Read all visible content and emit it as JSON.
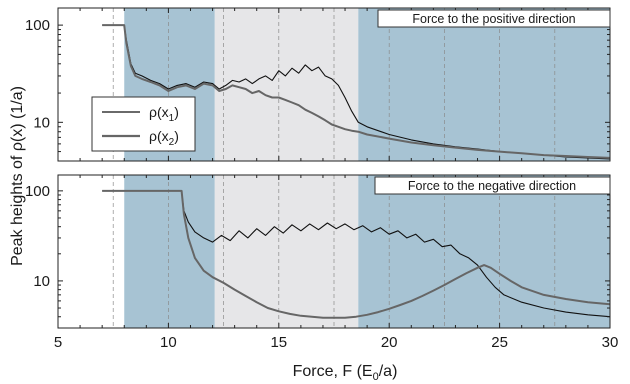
{
  "chart_data": [
    {
      "type": "line",
      "panel": "top",
      "annotation": "Force to the positive direction",
      "xlim": [
        5,
        30
      ],
      "ylim": [
        4,
        150
      ],
      "yscale": "log",
      "colors": {
        "rho_x1": "#111111",
        "rho_x2": "#666666",
        "band_blue": "#a7c3d3",
        "band_gray": "#e6e6e8"
      },
      "bands": [
        {
          "x0": 8.0,
          "x1": 12.1,
          "color": "band_blue"
        },
        {
          "x0": 12.1,
          "x1": 18.6,
          "color": "band_gray"
        },
        {
          "x0": 18.6,
          "x1": 30.0,
          "color": "band_blue"
        }
      ],
      "vlines": [
        7.5,
        10,
        12.5,
        15,
        17.5,
        20,
        22.5,
        25,
        27.5
      ],
      "legend": {
        "position": "left",
        "entries": [
          "ρ(x1)",
          "ρ(x2)"
        ]
      },
      "series": [
        {
          "key": "rho_x1",
          "name": "ρ(x1)",
          "x": [
            7.0,
            8.0,
            8.1,
            8.3,
            8.5,
            8.8,
            9.2,
            9.6,
            10.0,
            10.4,
            10.8,
            11.2,
            11.6,
            12.0,
            12.1,
            12.3,
            12.6,
            12.9,
            13.2,
            13.5,
            13.8,
            14.1,
            14.4,
            14.7,
            15.0,
            15.3,
            15.6,
            15.9,
            16.2,
            16.5,
            16.8,
            17.1,
            17.4,
            17.7,
            18.0,
            18.3,
            18.6,
            19.0,
            20.0,
            21.0,
            22.0,
            23.0,
            24.0,
            25.0,
            26.0,
            27.0,
            28.0,
            29.0,
            30.0
          ],
          "y": [
            100,
            100,
            70,
            40,
            32,
            30,
            27,
            25,
            22,
            24,
            25,
            23,
            26,
            25,
            24,
            22,
            24,
            27,
            26,
            28,
            25,
            28,
            30,
            27,
            34,
            30,
            36,
            32,
            39,
            34,
            37,
            30,
            28,
            24,
            18,
            13,
            10,
            9.0,
            7.5,
            6.6,
            6.0,
            5.6,
            5.3,
            5.0,
            4.8,
            4.6,
            4.4,
            4.3,
            4.2
          ]
        },
        {
          "key": "rho_x2",
          "name": "ρ(x2)",
          "x": [
            7.0,
            8.0,
            8.1,
            8.3,
            8.5,
            8.8,
            9.2,
            9.6,
            10.0,
            10.4,
            10.8,
            11.2,
            11.6,
            12.0,
            12.1,
            12.3,
            12.6,
            12.9,
            13.2,
            13.5,
            13.8,
            14.1,
            14.4,
            14.7,
            15.0,
            15.3,
            15.6,
            15.9,
            16.2,
            16.5,
            16.8,
            17.1,
            17.4,
            17.7,
            18.0,
            18.3,
            18.6,
            19.0,
            20.0,
            21.0,
            22.0,
            23.0,
            24.0,
            25.0,
            26.0,
            27.0,
            28.0,
            29.0,
            30.0
          ],
          "y": [
            100,
            100,
            65,
            38,
            30,
            28,
            26,
            24,
            21,
            23,
            24,
            22,
            25,
            24,
            23,
            21,
            22,
            24,
            23,
            22,
            20,
            21,
            19,
            18,
            18,
            17,
            16,
            15,
            13.5,
            12.5,
            11.5,
            10.5,
            9.5,
            9.0,
            8.5,
            8.2,
            8.0,
            7.5,
            6.8,
            6.2,
            5.8,
            5.5,
            5.2,
            5.0,
            4.8,
            4.6,
            4.5,
            4.4,
            4.3
          ]
        }
      ]
    },
    {
      "type": "line",
      "panel": "bottom",
      "annotation": "Force to the negative direction",
      "xlim": [
        5,
        30
      ],
      "ylim": [
        3,
        150
      ],
      "yscale": "log",
      "colors": {
        "rho_x1": "#111111",
        "rho_x2": "#666666",
        "band_blue": "#a7c3d3",
        "band_gray": "#e6e6e8"
      },
      "bands": [
        {
          "x0": 8.0,
          "x1": 12.1,
          "color": "band_blue"
        },
        {
          "x0": 12.1,
          "x1": 18.6,
          "color": "band_gray"
        },
        {
          "x0": 18.6,
          "x1": 30.0,
          "color": "band_blue"
        }
      ],
      "vlines": [
        7.5,
        10,
        12.5,
        15,
        17.5,
        20,
        22.5,
        25,
        27.5
      ],
      "series": [
        {
          "key": "rho_x1",
          "name": "ρ(x1)",
          "x": [
            7.0,
            10.6,
            10.7,
            10.9,
            11.2,
            11.6,
            12.0,
            12.4,
            12.8,
            13.2,
            13.6,
            14.0,
            14.4,
            14.8,
            15.2,
            15.6,
            16.0,
            16.4,
            16.8,
            17.2,
            17.6,
            18.0,
            18.4,
            18.8,
            19.2,
            19.6,
            20.0,
            20.4,
            20.8,
            21.2,
            21.6,
            22.0,
            22.4,
            22.8,
            23.2,
            23.6,
            24.0,
            24.4,
            24.8,
            25.2,
            26.0,
            27.0,
            28.0,
            29.0,
            30.0
          ],
          "y": [
            100,
            100,
            60,
            45,
            35,
            30,
            27,
            32,
            28,
            36,
            30,
            38,
            32,
            40,
            34,
            42,
            36,
            43,
            37,
            44,
            38,
            43,
            37,
            41,
            35,
            39,
            33,
            36,
            30,
            33,
            27,
            29,
            24,
            25,
            20,
            18,
            15,
            11,
            8.5,
            7.0,
            5.8,
            5.0,
            4.5,
            4.2,
            4.0
          ]
        },
        {
          "key": "rho_x2",
          "name": "ρ(x2)",
          "x": [
            7.0,
            10.6,
            10.7,
            10.9,
            11.2,
            11.6,
            12.0,
            12.5,
            13.0,
            13.5,
            14.0,
            14.5,
            15.0,
            15.5,
            16.0,
            16.5,
            17.0,
            17.5,
            18.0,
            18.5,
            19.0,
            19.5,
            20.0,
            20.5,
            21.0,
            21.5,
            22.0,
            22.5,
            23.0,
            23.5,
            24.0,
            24.3,
            24.6,
            25.0,
            25.5,
            26.0,
            27.0,
            28.0,
            29.0,
            30.0
          ],
          "y": [
            100,
            100,
            55,
            30,
            18,
            13,
            11,
            9.5,
            8.0,
            6.8,
            5.8,
            5.0,
            4.6,
            4.3,
            4.1,
            4.0,
            3.9,
            3.9,
            3.9,
            4.0,
            4.2,
            4.5,
            4.9,
            5.4,
            6.0,
            6.8,
            7.8,
            9.0,
            10.5,
            12.2,
            14.0,
            15.0,
            14.0,
            12.0,
            10.0,
            8.5,
            7.0,
            6.3,
            5.8,
            5.5
          ]
        }
      ]
    }
  ],
  "xlabel": "Force, F (E",
  "xlabel_sub": "0",
  "xlabel_end": "/a)",
  "ylabel": "Peak heights of ρ(x) (1/a)",
  "xticks": [
    5,
    10,
    15,
    20,
    25,
    30
  ],
  "yticks": [
    {
      "value": 100,
      "label": "100"
    },
    {
      "value": 10,
      "label": "10"
    }
  ],
  "legend": {
    "entry1_main": "ρ(x",
    "entry1_sub": "1",
    "entry1_end": ")",
    "entry2_main": "ρ(x",
    "entry2_sub": "2",
    "entry2_end": ")"
  },
  "annotations": {
    "top": "Force to the positive direction",
    "bottom": "Force to the negative direction"
  }
}
